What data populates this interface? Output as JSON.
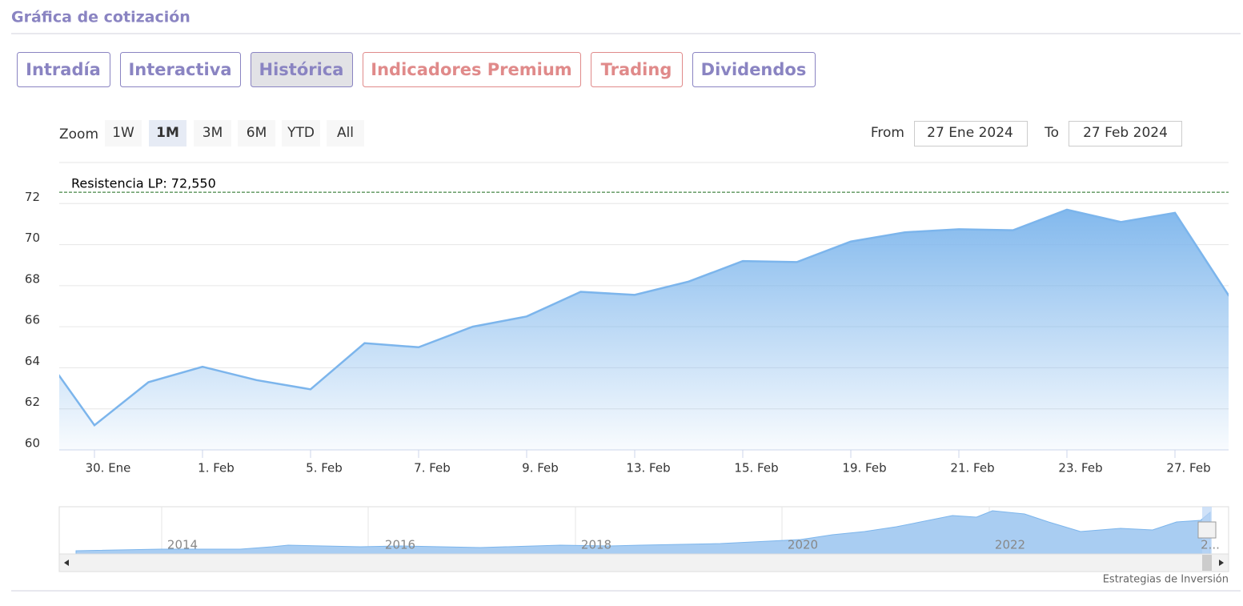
{
  "header": {
    "title": "Gráfica de cotización"
  },
  "tabs": [
    {
      "label": "Intradía",
      "color": "#8a84c2"
    },
    {
      "label": "Interactiva",
      "color": "#8a84c2"
    },
    {
      "label": "Histórica",
      "color": "#8a84c2",
      "selected": true
    },
    {
      "label": "Indicadores Premium",
      "color": "#e08a8a"
    },
    {
      "label": "Trading",
      "color": "#e08a8a"
    },
    {
      "label": "Dividendos",
      "color": "#8a84c2"
    }
  ],
  "zoom": {
    "label": "Zoom",
    "buttons": [
      {
        "label": "1W"
      },
      {
        "label": "1M",
        "selected": true
      },
      {
        "label": "3M"
      },
      {
        "label": "6M"
      },
      {
        "label": "YTD"
      },
      {
        "label": "All"
      }
    ]
  },
  "range": {
    "from_label": "From",
    "from": "27 Ene 2024",
    "to_label": "To",
    "to": "27 Feb 2024"
  },
  "chart_data": {
    "type": "area",
    "x": [
      "2024-01-29",
      "2024-01-30",
      "2024-01-31",
      "2024-02-01",
      "2024-02-02",
      "2024-02-05",
      "2024-02-06",
      "2024-02-07",
      "2024-02-08",
      "2024-02-09",
      "2024-02-12",
      "2024-02-13",
      "2024-02-14",
      "2024-02-15",
      "2024-02-16",
      "2024-02-19",
      "2024-02-20",
      "2024-02-21",
      "2024-02-22",
      "2024-02-23",
      "2024-02-26",
      "2024-02-27",
      "2024-02-28"
    ],
    "series": [
      {
        "color": "#7cb5ec",
        "values": [
          64.9,
          61.2,
          63.3,
          64.05,
          63.4,
          62.95,
          65.2,
          65.0,
          66.0,
          66.5,
          67.7,
          67.55,
          68.2,
          69.2,
          69.15,
          70.15,
          70.6,
          70.75,
          70.7,
          71.7,
          71.1,
          71.55,
          67.5
        ]
      }
    ],
    "ylim": [
      60,
      74
    ],
    "yticks": [
      60,
      62,
      64,
      66,
      68,
      70,
      72
    ],
    "grid": true,
    "xticks": [
      {
        "value": "2024-01-30",
        "label": "30. Ene"
      },
      {
        "value": "2024-02-01",
        "label": "1. Feb"
      },
      {
        "value": "2024-02-05",
        "label": "5. Feb"
      },
      {
        "value": "2024-02-07",
        "label": "7. Feb"
      },
      {
        "value": "2024-02-09",
        "label": "9. Feb"
      },
      {
        "value": "2024-02-13",
        "label": "13. Feb"
      },
      {
        "value": "2024-02-15",
        "label": "15. Feb"
      },
      {
        "value": "2024-02-19",
        "label": "19. Feb"
      },
      {
        "value": "2024-02-21",
        "label": "21. Feb"
      },
      {
        "value": "2024-02-23",
        "label": "23. Feb"
      },
      {
        "value": "2024-02-27",
        "label": "27. Feb"
      }
    ],
    "annotation": {
      "label": "Resistencia LP: 72,550",
      "value": 72.55,
      "color": "#1a6b1a"
    }
  },
  "navigator": {
    "years": [
      "2014",
      "2016",
      "2018",
      "2020",
      "2022",
      "2..."
    ]
  },
  "credits": "Estrategias de Inversión"
}
